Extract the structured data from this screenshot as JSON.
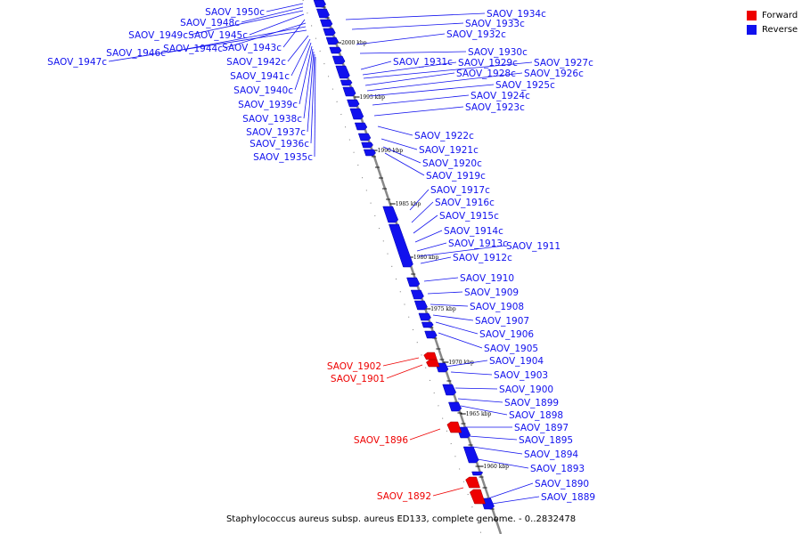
{
  "legend": {
    "items": [
      {
        "label": "Forward",
        "color": "#ee0000"
      },
      {
        "label": "Reverse",
        "color": "#1111ee"
      }
    ]
  },
  "footer": {
    "caption": "Staphylococcus aureus subsp. aureus ED133, complete genome. - 0..2832478"
  },
  "colors": {
    "forward": "#ee0000",
    "reverse": "#1111ee",
    "axis": "#888888"
  },
  "axis_ticks": [
    "2000 kbp",
    "1995 kbp",
    "1990 kbp",
    "1985 kbp",
    "1980 kbp",
    "1975 kbp",
    "1970 kbp",
    "1965 kbp",
    "1960 kbp"
  ],
  "genes": [
    {
      "name": "SAOV_1950c",
      "strand": "reverse"
    },
    {
      "name": "SAOV_1948c",
      "strand": "reverse"
    },
    {
      "name": "SAOV_1949c",
      "strand": "reverse"
    },
    {
      "name": "SAOV_1945c",
      "strand": "reverse"
    },
    {
      "name": "SAOV_1943c",
      "strand": "reverse"
    },
    {
      "name": "SAOV_1944c",
      "strand": "reverse"
    },
    {
      "name": "SAOV_1946c",
      "strand": "reverse"
    },
    {
      "name": "SAOV_1947c",
      "strand": "reverse"
    },
    {
      "name": "SAOV_1942c",
      "strand": "reverse"
    },
    {
      "name": "SAOV_1941c",
      "strand": "reverse"
    },
    {
      "name": "SAOV_1940c",
      "strand": "reverse"
    },
    {
      "name": "SAOV_1939c",
      "strand": "reverse"
    },
    {
      "name": "SAOV_1938c",
      "strand": "reverse"
    },
    {
      "name": "SAOV_1937c",
      "strand": "reverse"
    },
    {
      "name": "SAOV_1936c",
      "strand": "reverse"
    },
    {
      "name": "SAOV_1935c",
      "strand": "reverse"
    },
    {
      "name": "SAOV_1934c",
      "strand": "reverse"
    },
    {
      "name": "SAOV_1933c",
      "strand": "reverse"
    },
    {
      "name": "SAOV_1932c",
      "strand": "reverse"
    },
    {
      "name": "SAOV_1930c",
      "strand": "reverse"
    },
    {
      "name": "SAOV_1931c",
      "strand": "reverse"
    },
    {
      "name": "SAOV_1929c",
      "strand": "reverse"
    },
    {
      "name": "SAOV_1927c",
      "strand": "reverse"
    },
    {
      "name": "SAOV_1928c",
      "strand": "reverse"
    },
    {
      "name": "SAOV_1926c",
      "strand": "reverse"
    },
    {
      "name": "SAOV_1925c",
      "strand": "reverse"
    },
    {
      "name": "SAOV_1924c",
      "strand": "reverse"
    },
    {
      "name": "SAOV_1923c",
      "strand": "reverse"
    },
    {
      "name": "SAOV_1922c",
      "strand": "reverse"
    },
    {
      "name": "SAOV_1921c",
      "strand": "reverse"
    },
    {
      "name": "SAOV_1920c",
      "strand": "reverse"
    },
    {
      "name": "SAOV_1919c",
      "strand": "reverse"
    },
    {
      "name": "SAOV_1917c",
      "strand": "reverse"
    },
    {
      "name": "SAOV_1916c",
      "strand": "reverse"
    },
    {
      "name": "SAOV_1915c",
      "strand": "reverse"
    },
    {
      "name": "SAOV_1914c",
      "strand": "reverse"
    },
    {
      "name": "SAOV_1913c",
      "strand": "reverse"
    },
    {
      "name": "SAOV_1911",
      "strand": "reverse"
    },
    {
      "name": "SAOV_1912c",
      "strand": "reverse"
    },
    {
      "name": "SAOV_1910",
      "strand": "reverse"
    },
    {
      "name": "SAOV_1909",
      "strand": "reverse"
    },
    {
      "name": "SAOV_1908",
      "strand": "reverse"
    },
    {
      "name": "SAOV_1907",
      "strand": "reverse"
    },
    {
      "name": "SAOV_1906",
      "strand": "reverse"
    },
    {
      "name": "SAOV_1905",
      "strand": "reverse"
    },
    {
      "name": "SAOV_1904",
      "strand": "reverse"
    },
    {
      "name": "SAOV_1903",
      "strand": "reverse"
    },
    {
      "name": "SAOV_1900",
      "strand": "reverse"
    },
    {
      "name": "SAOV_1899",
      "strand": "reverse"
    },
    {
      "name": "SAOV_1898",
      "strand": "reverse"
    },
    {
      "name": "SAOV_1897",
      "strand": "reverse"
    },
    {
      "name": "SAOV_1895",
      "strand": "reverse"
    },
    {
      "name": "SAOV_1894",
      "strand": "reverse"
    },
    {
      "name": "SAOV_1893",
      "strand": "reverse"
    },
    {
      "name": "SAOV_1890",
      "strand": "reverse"
    },
    {
      "name": "SAOV_1889",
      "strand": "reverse"
    },
    {
      "name": "SAOV_1902",
      "strand": "forward"
    },
    {
      "name": "SAOV_1901",
      "strand": "forward"
    },
    {
      "name": "SAOV_1896",
      "strand": "forward"
    },
    {
      "name": "SAOV_1892",
      "strand": "forward"
    }
  ]
}
